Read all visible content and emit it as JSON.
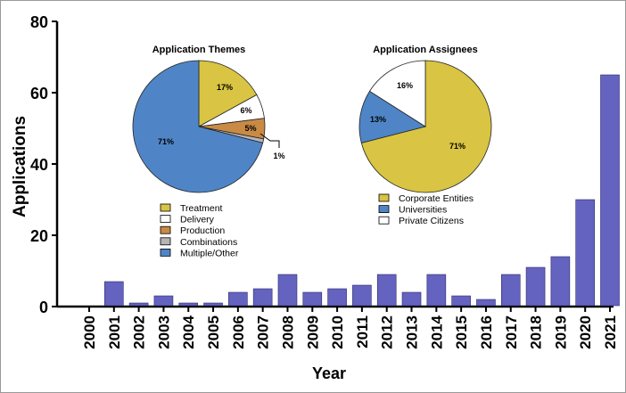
{
  "chart_data": [
    {
      "type": "bar",
      "title": "",
      "xlabel": "Year",
      "ylabel": "Applications",
      "ylim": [
        0,
        80
      ],
      "yticks": [
        "0",
        "20",
        "40",
        "60",
        "80"
      ],
      "categories": [
        "2000",
        "2001",
        "2002",
        "2003",
        "2004",
        "2005",
        "2006",
        "2007",
        "2008",
        "2009",
        "2010",
        "2011",
        "2012",
        "2013",
        "2014",
        "2015",
        "2016",
        "2017",
        "2018",
        "2019",
        "2020",
        "2021"
      ],
      "values": [
        0,
        7,
        1,
        3,
        1,
        1,
        4,
        5,
        9,
        4,
        5,
        6,
        9,
        4,
        9,
        3,
        2,
        9,
        11,
        14,
        30,
        65
      ],
      "bar_color": "#6463bf",
      "grid": false
    },
    {
      "type": "pie",
      "title": "Application Themes",
      "slices": [
        {
          "name": "Treatment",
          "value": 17,
          "label": "17%",
          "color": "#d9c443"
        },
        {
          "name": "Delivery",
          "value": 6,
          "label": "6%",
          "color": "#ffffff"
        },
        {
          "name": "Production",
          "value": 5,
          "label": "5%",
          "color": "#c98a45"
        },
        {
          "name": "Combinations",
          "value": 1,
          "label": "1%",
          "color": "#b5b5b5"
        },
        {
          "name": "Multiple/Other",
          "value": 71,
          "label": "71%",
          "color": "#4f85c6"
        }
      ],
      "legend": [
        "Treatment",
        "Delivery",
        "Production",
        "Combinations",
        "Multiple/Other"
      ]
    },
    {
      "type": "pie",
      "title": "Application Assignees",
      "slices": [
        {
          "name": "Corporate Entities",
          "value": 71,
          "label": "71%",
          "color": "#d9c443"
        },
        {
          "name": "Universities",
          "value": 13,
          "label": "13%",
          "color": "#4f85c6"
        },
        {
          "name": "Private Citizens",
          "value": 16,
          "label": "16%",
          "color": "#ffffff"
        }
      ],
      "legend": [
        "Corporate Entities",
        "Universities",
        "Private Citizens"
      ]
    }
  ]
}
